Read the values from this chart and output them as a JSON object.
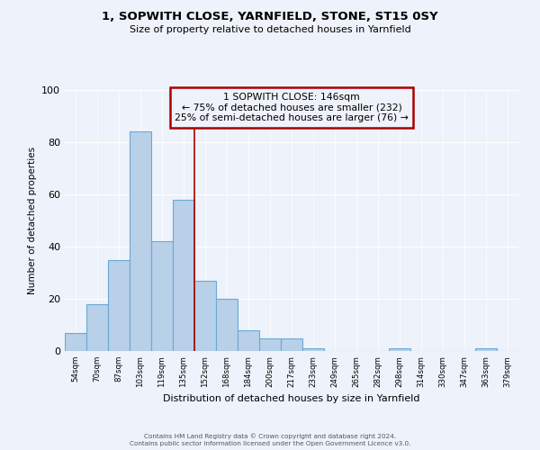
{
  "title": "1, SOPWITH CLOSE, YARNFIELD, STONE, ST15 0SY",
  "subtitle": "Size of property relative to detached houses in Yarnfield",
  "xlabel": "Distribution of detached houses by size in Yarnfield",
  "ylabel": "Number of detached properties",
  "bin_labels": [
    "54sqm",
    "70sqm",
    "87sqm",
    "103sqm",
    "119sqm",
    "135sqm",
    "152sqm",
    "168sqm",
    "184sqm",
    "200sqm",
    "217sqm",
    "233sqm",
    "249sqm",
    "265sqm",
    "282sqm",
    "298sqm",
    "314sqm",
    "330sqm",
    "347sqm",
    "363sqm",
    "379sqm"
  ],
  "counts": [
    7,
    18,
    35,
    84,
    42,
    58,
    27,
    20,
    8,
    5,
    5,
    1,
    0,
    0,
    0,
    1,
    0,
    0,
    0,
    1,
    0
  ],
  "bar_color": "#b8d0e8",
  "bar_edge_color": "#6aaad4",
  "marker_line_index": 6,
  "marker_line_color": "#aa0000",
  "annotation_box_text": "1 SOPWITH CLOSE: 146sqm\n← 75% of detached houses are smaller (232)\n25% of semi-detached houses are larger (76) →",
  "annotation_box_color": "#aa0000",
  "ylim": [
    0,
    100
  ],
  "yticks": [
    0,
    20,
    40,
    60,
    80,
    100
  ],
  "background_color": "#eef2fa",
  "grid_color": "#ffffff",
  "footer_line1": "Contains HM Land Registry data © Crown copyright and database right 2024.",
  "footer_line2": "Contains public sector information licensed under the Open Government Licence v3.0."
}
